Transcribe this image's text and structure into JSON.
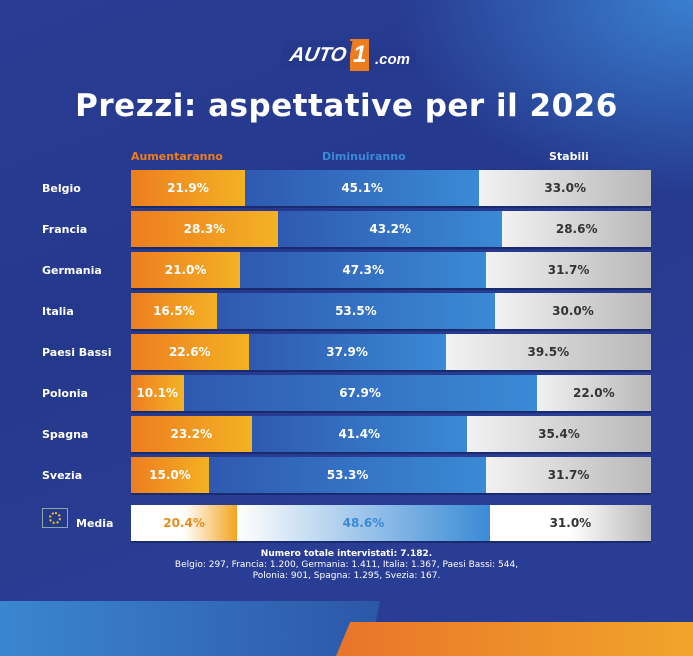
{
  "logo": {
    "text": "AUTO",
    "one": "1",
    "suffix": ".com"
  },
  "colors": {
    "aumentaranno": "#ee7d1f",
    "diminuiranno": "#3a8ad6",
    "stabili": "#cccccc",
    "background": "#24388c"
  },
  "chart_data": {
    "type": "bar",
    "orientation": "horizontal",
    "stacked": true,
    "unit": "%",
    "title": "Prezzi: aspettative per il 2026",
    "categories": [
      "Belgio",
      "Francia",
      "Germania",
      "Italia",
      "Paesi Bassi",
      "Polonia",
      "Spagna",
      "Svezia",
      "Media"
    ],
    "series": [
      {
        "name": "Aumentaranno",
        "values": [
          21.9,
          28.3,
          21.0,
          16.5,
          22.6,
          10.1,
          23.2,
          15.0,
          20.4
        ]
      },
      {
        "name": "Diminuiranno",
        "values": [
          45.1,
          43.2,
          47.3,
          53.5,
          37.9,
          67.9,
          41.4,
          53.3,
          48.6
        ]
      },
      {
        "name": "Stabili",
        "values": [
          33.0,
          28.6,
          31.7,
          30.0,
          39.5,
          22.0,
          35.4,
          31.7,
          31.0
        ]
      }
    ],
    "legend": "top"
  },
  "footer": {
    "total": "Numero totale intervistati: 7.182.",
    "line2": "Belgio: 297, Francia: 1.200, Germania: 1.411, Italia: 1.367, Paesi Bassi: 544,",
    "line3": "Polonia: 901, Spagna: 1.295, Svezia: 167."
  }
}
